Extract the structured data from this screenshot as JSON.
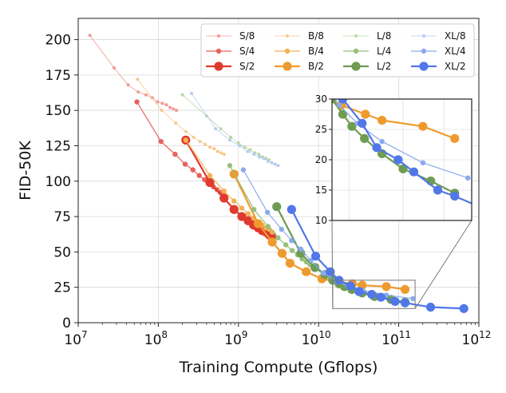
{
  "chart_data": {
    "type": "line",
    "xlabel": "Training Compute (Gflops)",
    "ylabel": "FID-50K",
    "xscale": "log",
    "xlim": [
      10000000.0,
      1000000000000.0
    ],
    "ylim": [
      0,
      215
    ],
    "xticks": [
      {
        "value": 10000000.0,
        "base": "10",
        "exp": "7"
      },
      {
        "value": 100000000.0,
        "base": "10",
        "exp": "8"
      },
      {
        "value": 1000000000.0,
        "base": "10",
        "exp": "9"
      },
      {
        "value": 10000000000.0,
        "base": "10",
        "exp": "10"
      },
      {
        "value": 100000000000.0,
        "base": "10",
        "exp": "11"
      },
      {
        "value": 1000000000000.0,
        "base": "10",
        "exp": "12"
      }
    ],
    "yticks": [
      0,
      25,
      50,
      75,
      100,
      125,
      150,
      175,
      200
    ],
    "grid": true,
    "legend_position": "top-right",
    "inset": {
      "xlim": [
        15000000000.0,
        160000000000.0
      ],
      "ylim": [
        10,
        30
      ],
      "yticks": [
        10,
        15,
        20,
        25,
        30
      ],
      "placement": "right-middle"
    },
    "series": [
      {
        "name": "S/8",
        "color": "#f19b93",
        "size": "small",
        "points": [
          [
            14000000.0,
            203
          ],
          [
            28000000.0,
            180
          ],
          [
            42000000.0,
            168
          ],
          [
            56000000.0,
            163
          ],
          [
            70000000.0,
            161
          ],
          [
            84000000.0,
            159
          ],
          [
            98000000.0,
            156
          ],
          [
            112000000.0,
            155
          ],
          [
            126000000.0,
            154
          ],
          [
            140000000.0,
            152
          ],
          [
            154000000.0,
            151
          ],
          [
            168000000.0,
            150
          ]
        ]
      },
      {
        "name": "S/4",
        "color": "#e8625b",
        "size": "medium",
        "points": [
          [
            54000000.0,
            156
          ],
          [
            108000000.0,
            128
          ],
          [
            162000000.0,
            119
          ],
          [
            216000000.0,
            112
          ],
          [
            270000000.0,
            108
          ],
          [
            324000000.0,
            104
          ],
          [
            378000000.0,
            101
          ],
          [
            432000000.0,
            98
          ],
          [
            486000000.0,
            96
          ],
          [
            540000000.0,
            94
          ],
          [
            594000000.0,
            92
          ],
          [
            648000000.0,
            90
          ]
        ]
      },
      {
        "name": "S/2",
        "color": "#e03a2e",
        "size": "large",
        "points": [
          [
            220000000.0,
            129
          ],
          [
            440000000.0,
            99
          ],
          [
            660000000.0,
            88
          ],
          [
            880000000.0,
            80
          ],
          [
            1100000000.0,
            75
          ],
          [
            1320000000.0,
            72
          ],
          [
            1540000000.0,
            69
          ],
          [
            1760000000.0,
            67
          ],
          [
            1980000000.0,
            65
          ],
          [
            2200000000.0,
            64
          ],
          [
            2420000000.0,
            62
          ],
          [
            2640000000.0,
            61
          ]
        ]
      },
      {
        "name": "B/8",
        "color": "#f7c98c",
        "size": "small",
        "points": [
          [
            55000000.0,
            172
          ],
          [
            110000000.0,
            150
          ],
          [
            165000000.0,
            141
          ],
          [
            220000000.0,
            135
          ],
          [
            275000000.0,
            131
          ],
          [
            330000000.0,
            128
          ],
          [
            385000000.0,
            126
          ],
          [
            440000000.0,
            124
          ],
          [
            495000000.0,
            123
          ],
          [
            550000000.0,
            121
          ],
          [
            605000000.0,
            120
          ],
          [
            660000000.0,
            119
          ]
        ]
      },
      {
        "name": "B/4",
        "color": "#f3b054",
        "size": "medium",
        "points": [
          [
            220000000.0,
            129
          ],
          [
            440000000.0,
            104
          ],
          [
            660000000.0,
            93
          ],
          [
            880000000.0,
            86
          ],
          [
            1100000000.0,
            81
          ],
          [
            1320000000.0,
            77
          ],
          [
            1540000000.0,
            74
          ],
          [
            1760000000.0,
            71
          ],
          [
            1980000000.0,
            69
          ],
          [
            2200000000.0,
            67
          ],
          [
            2420000000.0,
            66
          ],
          [
            2640000000.0,
            64
          ]
        ]
      },
      {
        "name": "B/2",
        "color": "#ef9a2e",
        "size": "large",
        "points": [
          [
            880000000.0,
            105
          ],
          [
            1760000000.0,
            70
          ],
          [
            2640000000.0,
            57
          ],
          [
            3500000000.0,
            49
          ],
          [
            4400000000.0,
            42
          ],
          [
            7000000000.0,
            36
          ],
          [
            11000000000.0,
            31
          ],
          [
            17600000000.0,
            29
          ],
          [
            26400000000.0,
            27.5
          ],
          [
            35000000000.0,
            26.5
          ],
          [
            70000000000.0,
            25.5
          ],
          [
            120000000000.0,
            23.5
          ]
        ]
      },
      {
        "name": "L/8",
        "color": "#bcd5a6",
        "size": "small",
        "points": [
          [
            200000000.0,
            161
          ],
          [
            400000000.0,
            146
          ],
          [
            600000000.0,
            137
          ],
          [
            800000000.0,
            131
          ],
          [
            1000000000.0,
            127
          ],
          [
            1200000000.0,
            124
          ],
          [
            1400000000.0,
            122
          ],
          [
            1600000000.0,
            120
          ],
          [
            1800000000.0,
            119
          ],
          [
            2000000000.0,
            117
          ],
          [
            2200000000.0,
            116
          ],
          [
            2400000000.0,
            115
          ]
        ]
      },
      {
        "name": "L/4",
        "color": "#98bf7c",
        "size": "medium",
        "points": [
          [
            780000000.0,
            111
          ],
          [
            1560000000.0,
            80
          ],
          [
            2340000000.0,
            68
          ],
          [
            3120000000.0,
            60
          ],
          [
            3900000000.0,
            55
          ],
          [
            4680000000.0,
            51
          ],
          [
            5460000000.0,
            48
          ],
          [
            6240000000.0,
            45
          ],
          [
            7020000000.0,
            43
          ],
          [
            7800000000.0,
            41
          ],
          [
            8580000000.0,
            40
          ],
          [
            9360000000.0,
            38
          ]
        ]
      },
      {
        "name": "L/2",
        "color": "#6d9c52",
        "size": "large",
        "points": [
          [
            3000000000.0,
            82
          ],
          [
            6000000000.0,
            49
          ],
          [
            9000000000.0,
            39
          ],
          [
            12000000000.0,
            34
          ],
          [
            15000000000.0,
            30
          ],
          [
            18000000000.0,
            27.5
          ],
          [
            21000000000.0,
            25.5
          ],
          [
            26000000000.0,
            23.5
          ],
          [
            35000000000.0,
            21
          ],
          [
            50000000000.0,
            18.5
          ],
          [
            80000000000.0,
            16.5
          ],
          [
            120000000000.0,
            14.5
          ]
        ]
      },
      {
        "name": "XL/8",
        "color": "#b5cdf3",
        "size": "small",
        "points": [
          [
            260000000.0,
            162
          ],
          [
            520000000.0,
            137
          ],
          [
            780000000.0,
            129
          ],
          [
            1040000000.0,
            125
          ],
          [
            1300000000.0,
            121
          ],
          [
            1560000000.0,
            119
          ],
          [
            1820000000.0,
            117
          ],
          [
            2080000000.0,
            116
          ],
          [
            2340000000.0,
            114
          ],
          [
            2600000000.0,
            113
          ],
          [
            2860000000.0,
            112
          ],
          [
            3120000000.0,
            111
          ]
        ]
      },
      {
        "name": "XL/4",
        "color": "#8aaaf0",
        "size": "medium",
        "points": [
          [
            1150000000.0,
            108
          ],
          [
            2300000000.0,
            78
          ],
          [
            3450000000.0,
            66
          ],
          [
            4600000000.0,
            58
          ],
          [
            6000000000.0,
            52
          ],
          [
            8000000000.0,
            44
          ],
          [
            11500000000.0,
            35
          ],
          [
            17000000000.0,
            29
          ],
          [
            23000000000.0,
            26
          ],
          [
            35000000000.0,
            23
          ],
          [
            70000000000.0,
            19.5
          ],
          [
            150000000000.0,
            17
          ]
        ]
      },
      {
        "name": "XL/2",
        "color": "#5177e8",
        "size": "large",
        "points": [
          [
            4600000000.0,
            80
          ],
          [
            9200000000.0,
            47
          ],
          [
            14000000000.0,
            36
          ],
          [
            18000000000.0,
            30
          ],
          [
            25000000000.0,
            26
          ],
          [
            32000000000.0,
            22
          ],
          [
            46000000000.0,
            20
          ],
          [
            60000000000.0,
            18
          ],
          [
            90000000000.0,
            15
          ],
          [
            120000000000.0,
            14
          ],
          [
            250000000000.0,
            11
          ],
          [
            650000000000.0,
            10
          ]
        ]
      }
    ]
  }
}
